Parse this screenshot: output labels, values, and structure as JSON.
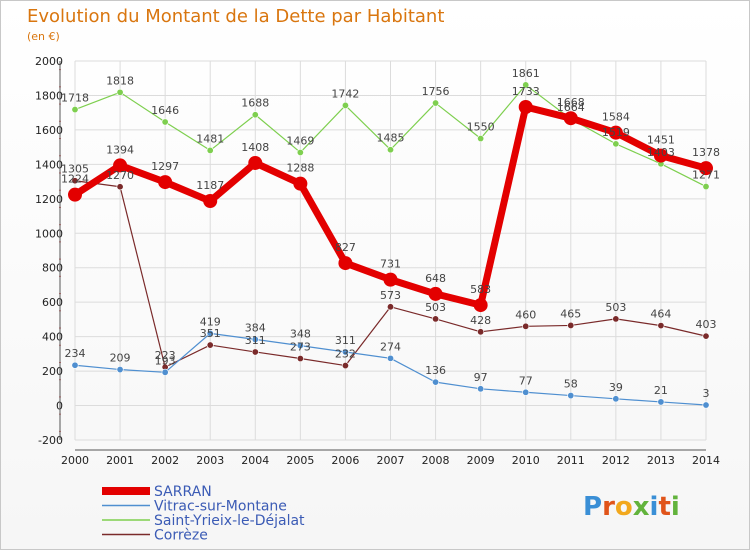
{
  "chart_data": {
    "type": "line",
    "title": "Evolution du Montant de la Dette par Habitant",
    "subtitle": "(en €)",
    "x": [
      2000,
      2001,
      2002,
      2003,
      2004,
      2005,
      2006,
      2007,
      2008,
      2009,
      2010,
      2011,
      2012,
      2013,
      2014
    ],
    "xlabels": [
      "2000",
      "2001",
      "2002",
      "2003",
      "2004",
      "2005",
      "2006",
      "2007",
      "2008",
      "2009",
      "2010",
      "2011",
      "2012",
      "2013",
      "2014"
    ],
    "ylim": [
      -200,
      2000
    ],
    "yticks": [
      "-200",
      "0",
      "200",
      "400",
      "600",
      "800",
      "1000",
      "1200",
      "1400",
      "1600",
      "1800",
      "2000"
    ],
    "grid": true,
    "legend_position": "bottom-left",
    "series": [
      {
        "name": "Corrèze",
        "color": "#7a2a2a",
        "values": [
          1305,
          1270,
          223,
          351,
          311,
          273,
          232,
          573,
          503,
          428,
          460,
          465,
          503,
          464,
          403
        ],
        "labels": [
          "1305",
          "1270",
          "223",
          "351",
          "311",
          "273",
          "232",
          "573",
          "503",
          "428",
          "460",
          "465",
          "503",
          "464",
          "403"
        ]
      },
      {
        "name": "Vitrac-sur-Montane",
        "color": "#4f8fd0",
        "values": [
          234,
          209,
          193,
          419,
          384,
          348,
          311,
          274,
          136,
          97,
          77,
          58,
          39,
          21,
          3
        ],
        "labels": [
          "234",
          "209",
          "193",
          "419",
          "384",
          "348",
          "311",
          "274",
          "136",
          "97",
          "77",
          "58",
          "39",
          "21",
          "3"
        ]
      },
      {
        "name": "Saint-Yrieix-le-Déjalat",
        "color": "#7ecf4f",
        "values": [
          1718,
          1818,
          1646,
          1481,
          1688,
          1469,
          1742,
          1485,
          1756,
          1550,
          1861,
          1664,
          1519,
          1403,
          1271
        ],
        "labels": [
          "1718",
          "1818",
          "1646",
          "1481",
          "1688",
          "1469",
          "1742",
          "1485",
          "1756",
          "1550",
          "1861",
          "1664",
          "1519",
          "1403",
          "1271"
        ]
      },
      {
        "name": "SARRAN",
        "color": "#e30000",
        "values": [
          1224,
          1394,
          1297,
          1187,
          1408,
          1288,
          827,
          731,
          648,
          583,
          1733,
          1668,
          1584,
          1451,
          1378
        ],
        "labels": [
          "1224",
          "1394",
          "1297",
          "1187",
          "1408",
          "1288",
          "827",
          "731",
          "648",
          "583",
          "1733",
          "1668",
          "1584",
          "1451",
          "1378"
        ]
      }
    ]
  },
  "legend": [
    {
      "name": "SARRAN",
      "color": "#e30000"
    },
    {
      "name": "Vitrac-sur-Montane",
      "color": "#4f8fd0"
    },
    {
      "name": "Saint-Yrieix-le-Déjalat",
      "color": "#7ecf4f"
    },
    {
      "name": "Corrèze",
      "color": "#7a2a2a"
    }
  ],
  "logo": {
    "text": "Proxiti",
    "letters": [
      "P",
      "r",
      "o",
      "x",
      "i",
      "t",
      "i"
    ],
    "colors": [
      "#3a8fd6",
      "#e0541a",
      "#f2a81d",
      "#62b33c",
      "#3a8fd6",
      "#e0541a",
      "#62b33c"
    ]
  }
}
